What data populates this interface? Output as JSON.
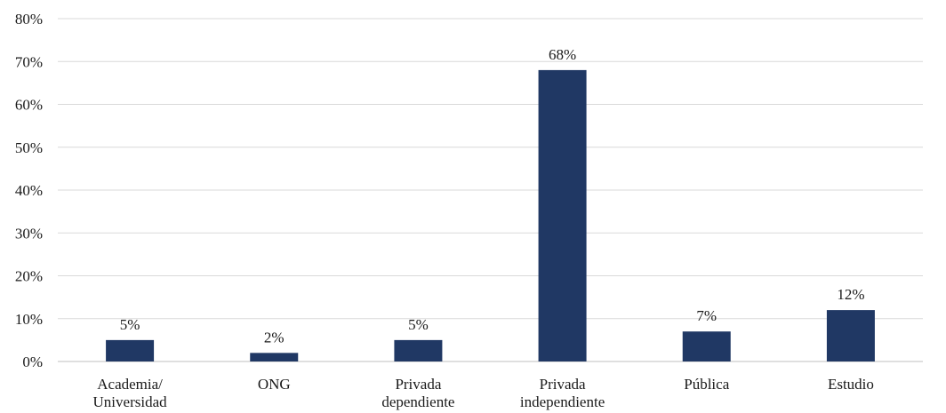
{
  "chart_data": {
    "type": "bar",
    "categories": [
      [
        "Academia/",
        "Universidad"
      ],
      [
        "ONG"
      ],
      [
        "Privada",
        "dependiente"
      ],
      [
        "Privada",
        "independiente"
      ],
      [
        "Pública"
      ],
      [
        "Estudio"
      ]
    ],
    "values": [
      5,
      2,
      5,
      68,
      7,
      12
    ],
    "data_labels": [
      "5%",
      "2%",
      "5%",
      "68%",
      "7%",
      "12%"
    ],
    "ylim": [
      0,
      80
    ],
    "yticks": [
      0,
      10,
      20,
      30,
      40,
      50,
      60,
      70,
      80
    ],
    "ytick_labels": [
      "0%",
      "10%",
      "20%",
      "30%",
      "40%",
      "50%",
      "60%",
      "70%",
      "80%"
    ],
    "grid": true,
    "legend": "none",
    "bar_color": "#203864"
  }
}
